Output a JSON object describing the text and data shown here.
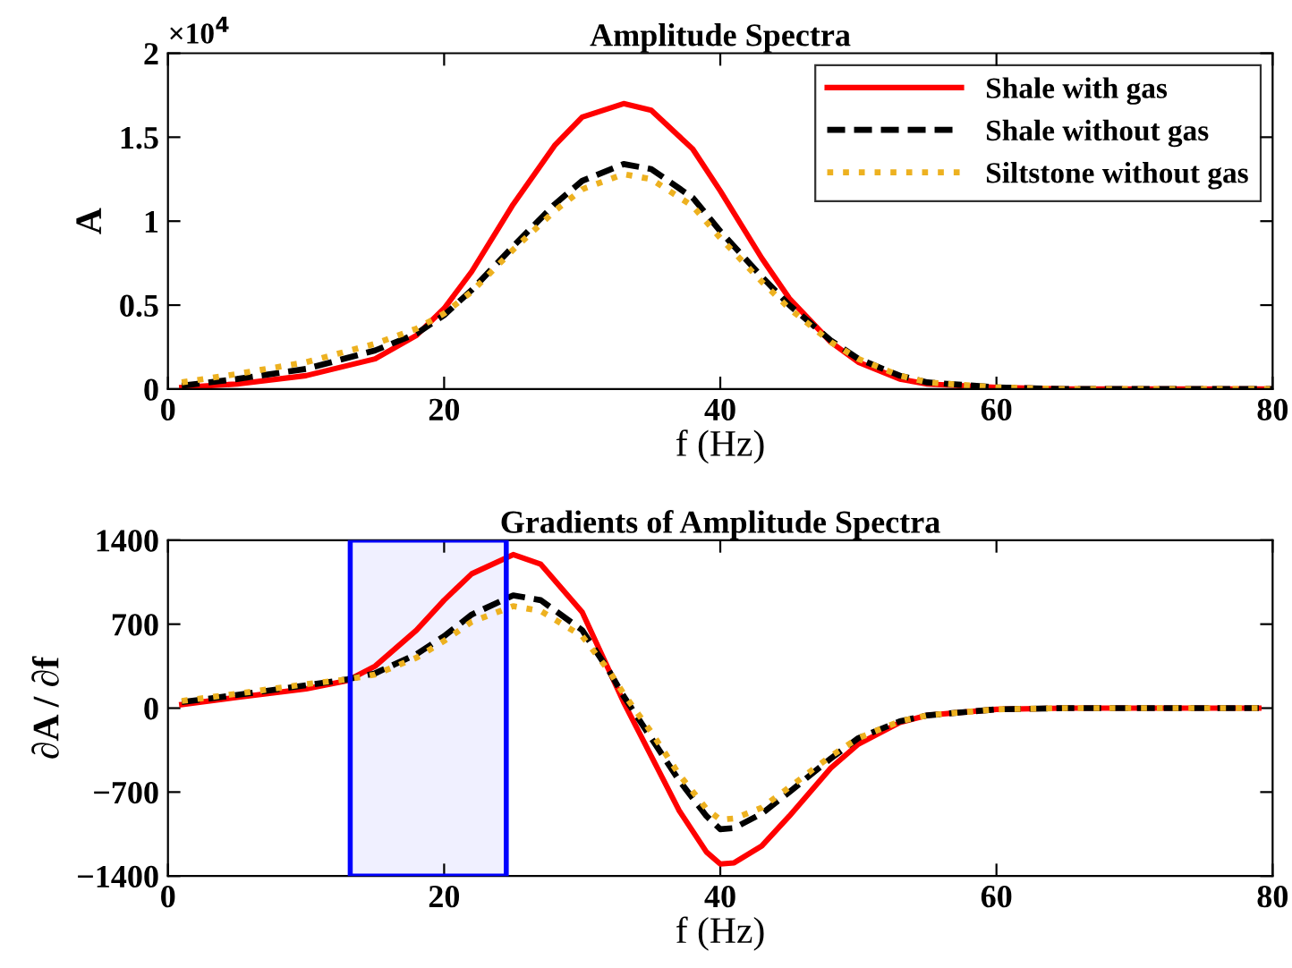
{
  "chart_data": [
    {
      "type": "line",
      "title": "Amplitude Spectra",
      "xlabel": "f (Hz)",
      "ylabel": "A",
      "annotations": [
        "×10$^{4}$"
      ],
      "x": [
        1,
        5,
        10,
        15,
        18,
        20,
        22,
        25,
        28,
        30,
        33,
        35,
        38,
        40,
        43,
        45,
        48,
        50,
        53,
        55,
        60,
        65,
        70,
        80
      ],
      "series": [
        {
          "name": "Shale with gas",
          "color": "#ff0000",
          "line_style": "solid",
          "values": [
            0.01,
            0.03,
            0.08,
            0.18,
            0.32,
            0.48,
            0.7,
            1.1,
            1.45,
            1.62,
            1.7,
            1.66,
            1.43,
            1.18,
            0.78,
            0.54,
            0.28,
            0.16,
            0.06,
            0.03,
            0.01,
            0,
            0,
            0
          ]
        },
        {
          "name": "Shale without gas",
          "color": "#000000",
          "line_style": "dashed",
          "values": [
            0.02,
            0.06,
            0.12,
            0.23,
            0.33,
            0.44,
            0.59,
            0.85,
            1.1,
            1.24,
            1.34,
            1.31,
            1.14,
            0.94,
            0.67,
            0.5,
            0.29,
            0.18,
            0.08,
            0.04,
            0.01,
            0,
            0,
            0
          ]
        },
        {
          "name": "Siltstone without gas",
          "color": "#edb120",
          "line_style": "dotted",
          "values": [
            0.04,
            0.09,
            0.16,
            0.27,
            0.36,
            0.45,
            0.58,
            0.83,
            1.06,
            1.19,
            1.28,
            1.25,
            1.09,
            0.9,
            0.64,
            0.48,
            0.28,
            0.18,
            0.08,
            0.04,
            0.01,
            0,
            0,
            0
          ]
        }
      ],
      "xlim": [
        0,
        80
      ],
      "xticks": [
        0,
        20,
        40,
        60,
        80
      ],
      "ylim": [
        0,
        2
      ],
      "yticks": [
        0,
        0.5,
        1,
        1.5,
        2
      ],
      "legend": "top right",
      "grid": false
    },
    {
      "type": "line",
      "title": "Gradients of Amplitude Spectra",
      "xlabel": "f (Hz)",
      "ylabel": "∂A / ∂f",
      "x": [
        1,
        5,
        10,
        13,
        15,
        18,
        20,
        22,
        25,
        27,
        30,
        32,
        33,
        35,
        37,
        39,
        40,
        41,
        43,
        45,
        48,
        50,
        53,
        55,
        60,
        65,
        79
      ],
      "series": [
        {
          "color": "#ff0000",
          "line_style": "solid",
          "values": [
            30,
            90,
            160,
            230,
            350,
            650,
            900,
            1120,
            1280,
            1200,
            800,
            300,
            50,
            -400,
            -850,
            -1200,
            -1300,
            -1290,
            -1150,
            -900,
            -500,
            -300,
            -120,
            -60,
            -10,
            0,
            0
          ]
        },
        {
          "color": "#000000",
          "line_style": "dashed",
          "values": [
            50,
            110,
            190,
            240,
            290,
            450,
            600,
            780,
            940,
            900,
            650,
            300,
            100,
            -250,
            -600,
            -900,
            -1010,
            -1000,
            -880,
            -700,
            -420,
            -250,
            -110,
            -60,
            -10,
            0,
            0
          ]
        },
        {
          "color": "#edb120",
          "line_style": "dotted",
          "values": [
            60,
            120,
            200,
            240,
            280,
            420,
            560,
            720,
            850,
            810,
            600,
            300,
            120,
            -200,
            -550,
            -840,
            -930,
            -920,
            -830,
            -660,
            -400,
            -250,
            -110,
            -60,
            -10,
            0,
            0
          ]
        }
      ],
      "bands": [
        {
          "axis": "x",
          "from": 13.2,
          "to": 24.5,
          "color": "#0000ff"
        }
      ],
      "xlim": [
        0,
        80
      ],
      "xticks": [
        0,
        20,
        40,
        60,
        80
      ],
      "ylim": [
        -1400,
        1400
      ],
      "yticks": [
        {
          "value": -1400,
          "label": "−1400"
        },
        {
          "value": -700,
          "label": "−700"
        },
        0,
        700,
        1400
      ],
      "grid": false
    }
  ]
}
